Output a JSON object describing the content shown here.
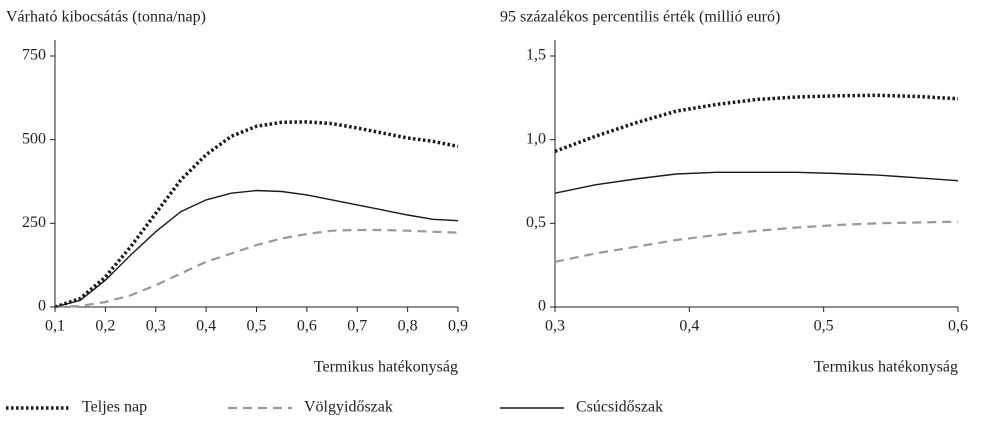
{
  "chart_data": [
    {
      "type": "line",
      "title": "Várható kibocsátás (tonna/nap)",
      "xlabel": "Termikus hatékonyság",
      "x": [
        0.1,
        0.15,
        0.2,
        0.25,
        0.3,
        0.35,
        0.4,
        0.45,
        0.5,
        0.55,
        0.6,
        0.65,
        0.7,
        0.75,
        0.8,
        0.85,
        0.9
      ],
      "xlim": [
        0.1,
        0.9
      ],
      "xticks": [
        {
          "value": 0.1,
          "label": "0,1"
        },
        {
          "value": 0.2,
          "label": "0,2"
        },
        {
          "value": 0.3,
          "label": "0,3"
        },
        {
          "value": 0.4,
          "label": "0,4"
        },
        {
          "value": 0.5,
          "label": "0,5"
        },
        {
          "value": 0.6,
          "label": "0,6"
        },
        {
          "value": 0.7,
          "label": "0,7"
        },
        {
          "value": 0.8,
          "label": "0,8"
        },
        {
          "value": 0.9,
          "label": "0,9"
        }
      ],
      "ylim": [
        0,
        750
      ],
      "yticks": [
        0,
        250,
        500,
        750
      ],
      "series": [
        {
          "name": "Teljes nap",
          "color": "#1a1a1a",
          "style": "dotted",
          "values": [
            0,
            25,
            90,
            180,
            280,
            380,
            455,
            510,
            540,
            552,
            553,
            548,
            535,
            520,
            505,
            495,
            480
          ]
        },
        {
          "name": "Völgyidőszak",
          "color": "#999999",
          "style": "dashed",
          "values": [
            0,
            3,
            15,
            35,
            65,
            100,
            135,
            160,
            185,
            205,
            218,
            228,
            230,
            230,
            228,
            225,
            222
          ]
        },
        {
          "name": "Csúcsidőszak",
          "color": "#1a1a1a",
          "style": "solid",
          "values": [
            0,
            20,
            80,
            155,
            225,
            285,
            320,
            340,
            348,
            345,
            335,
            320,
            305,
            290,
            275,
            262,
            258
          ]
        }
      ]
    },
    {
      "type": "line",
      "title": "95 százalékos percentilis érték (millió euró)",
      "xlabel": "Termikus hatékonyság",
      "x": [
        0.3,
        0.33,
        0.36,
        0.39,
        0.42,
        0.45,
        0.48,
        0.51,
        0.54,
        0.57,
        0.6
      ],
      "xlim": [
        0.3,
        0.6
      ],
      "xticks": [
        {
          "value": 0.3,
          "label": "0,3"
        },
        {
          "value": 0.4,
          "label": "0,4"
        },
        {
          "value": 0.5,
          "label": "0,5"
        },
        {
          "value": 0.6,
          "label": "0,6"
        }
      ],
      "ylim": [
        0,
        1.5
      ],
      "yticks": [
        0,
        {
          "value": 0.5,
          "label": "0,5"
        },
        {
          "value": 1.0,
          "label": "1,0"
        },
        {
          "value": 1.5,
          "label": "1,5"
        }
      ],
      "series": [
        {
          "name": "Teljes nap",
          "color": "#1a1a1a",
          "style": "dotted",
          "values": [
            0.93,
            1.02,
            1.1,
            1.17,
            1.21,
            1.24,
            1.255,
            1.262,
            1.265,
            1.258,
            1.245
          ]
        },
        {
          "name": "Völgyidőszak",
          "color": "#999999",
          "style": "dashed",
          "values": [
            0.27,
            0.32,
            0.36,
            0.4,
            0.43,
            0.455,
            0.475,
            0.49,
            0.5,
            0.505,
            0.51
          ]
        },
        {
          "name": "Csúcsidőszak",
          "color": "#1a1a1a",
          "style": "solid",
          "values": [
            0.68,
            0.73,
            0.765,
            0.795,
            0.805,
            0.805,
            0.805,
            0.798,
            0.788,
            0.772,
            0.755
          ]
        }
      ]
    }
  ]
}
